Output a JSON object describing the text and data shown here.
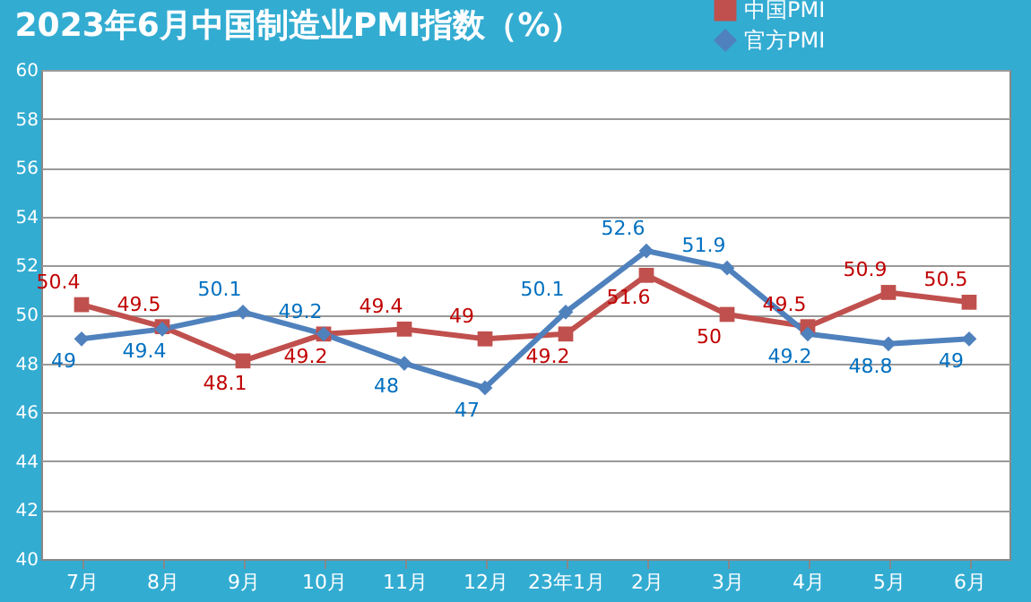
{
  "chart_data": {
    "type": "line",
    "title": "2023年6月中国制造业PMI指数（%）",
    "categories": [
      "7月",
      "8月",
      "9月",
      "10月",
      "11月",
      "12月",
      "23年1月",
      "2月",
      "3月",
      "4月",
      "5月",
      "6月"
    ],
    "series": [
      {
        "name": "中国PMI",
        "color": "#c0504d",
        "marker": "square",
        "values": [
          50.4,
          49.5,
          48.1,
          49.2,
          49.4,
          49,
          49.2,
          51.6,
          50,
          49.5,
          50.9,
          50.5
        ]
      },
      {
        "name": "官方PMI",
        "color": "#4f81bd",
        "marker": "diamond",
        "values": [
          49,
          49.4,
          50.1,
          49.2,
          48,
          47,
          50.1,
          52.6,
          51.9,
          49.2,
          48.8,
          49
        ]
      }
    ],
    "ylim": [
      40,
      60
    ],
    "yticks": [
      40,
      42,
      44,
      46,
      48,
      50,
      52,
      54,
      56,
      58,
      60
    ],
    "grid": "y",
    "legend": "top right",
    "data_labels": true,
    "line_style": "solid"
  }
}
